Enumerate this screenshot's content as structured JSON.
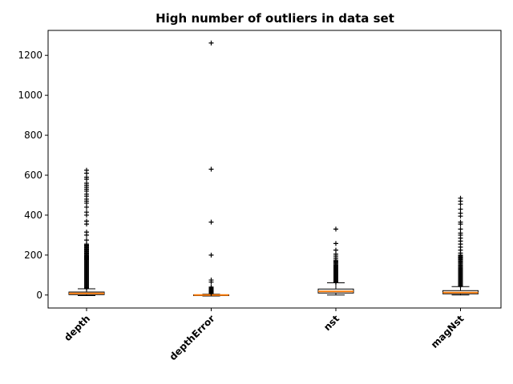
{
  "chart_data": {
    "type": "boxplot",
    "title": "High number of outliers in data set",
    "xlabel": "",
    "ylabel": "",
    "ylim": [
      -65,
      1325
    ],
    "yticks": [
      0,
      200,
      400,
      600,
      800,
      1000,
      1200
    ],
    "categories": [
      "depth",
      "depthError",
      "nst",
      "magNst"
    ],
    "boxes": [
      {
        "name": "depth",
        "whisker_low": -3,
        "q1": 2,
        "median": 8,
        "q3": 15,
        "whisker_high": 31,
        "outliers": [
          33,
          36,
          40,
          44,
          48,
          52,
          56,
          60,
          64,
          68,
          72,
          76,
          80,
          84,
          88,
          92,
          96,
          100,
          104,
          108,
          112,
          116,
          120,
          124,
          128,
          132,
          136,
          140,
          144,
          148,
          152,
          156,
          160,
          164,
          168,
          172,
          176,
          180,
          184,
          188,
          192,
          196,
          200,
          205,
          210,
          215,
          220,
          225,
          230,
          235,
          240,
          245,
          250,
          255,
          275,
          300,
          315,
          355,
          370,
          400,
          415,
          440,
          460,
          470,
          480,
          495,
          505,
          520,
          530,
          540,
          550,
          560,
          580,
          590,
          610,
          625
        ]
      },
      {
        "name": "depthError",
        "whisker_low": -5,
        "q1": -1,
        "median": 0,
        "q3": 1,
        "whisker_high": 4,
        "outliers": [
          8,
          12,
          15,
          18,
          21,
          24,
          28,
          32,
          36,
          40,
          65,
          75,
          200,
          365,
          630,
          1262
        ]
      },
      {
        "name": "nst",
        "whisker_low": 0,
        "q1": 10,
        "median": 18,
        "q3": 30,
        "whisker_high": 61,
        "outliers": [
          63,
          66,
          70,
          74,
          78,
          82,
          86,
          90,
          94,
          98,
          102,
          106,
          110,
          114,
          118,
          122,
          126,
          130,
          134,
          138,
          142,
          146,
          150,
          155,
          160,
          165,
          170,
          175,
          185,
          195,
          205,
          225,
          258,
          330
        ]
      },
      {
        "name": "magNst",
        "whisker_low": 0,
        "q1": 6,
        "median": 12,
        "q3": 22,
        "whisker_high": 42,
        "outliers": [
          45,
          48,
          52,
          56,
          60,
          64,
          68,
          72,
          76,
          80,
          84,
          88,
          92,
          96,
          100,
          104,
          108,
          112,
          116,
          120,
          124,
          128,
          132,
          136,
          140,
          145,
          150,
          155,
          160,
          165,
          170,
          175,
          180,
          185,
          190,
          195,
          200,
          210,
          225,
          240,
          255,
          270,
          285,
          300,
          310,
          330,
          355,
          365,
          395,
          410,
          430,
          455,
          470,
          485
        ]
      }
    ],
    "colors": {
      "median": "#ff7f0e",
      "box": "#000000",
      "background": "#ffffff"
    },
    "grid": false,
    "legend": "none"
  }
}
